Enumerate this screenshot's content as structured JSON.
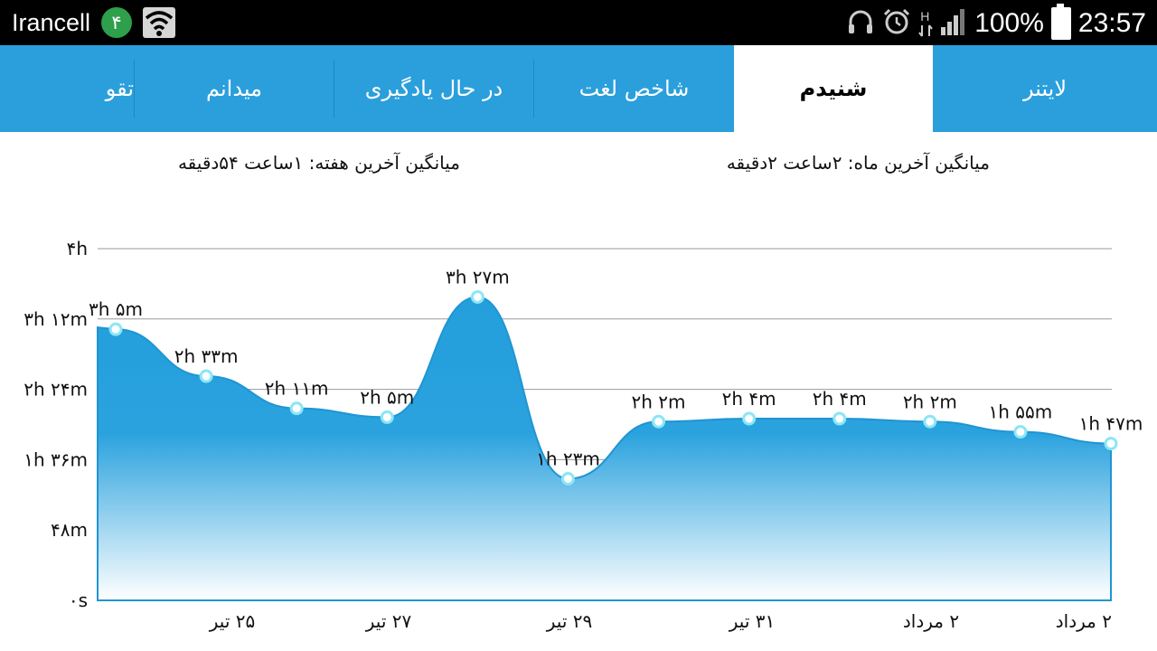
{
  "status_bar": {
    "carrier": "Irancell",
    "sim_number": "۴",
    "network_label": "H",
    "battery_percent": "100%",
    "time": "23:57"
  },
  "tabs": [
    {
      "label": "لایتنر",
      "active": false
    },
    {
      "label": "شنیدم",
      "active": true
    },
    {
      "label": "شاخص لغت",
      "active": false
    },
    {
      "label": "در حال یادگیری",
      "active": false
    },
    {
      "label": "میدانم",
      "active": false
    },
    {
      "label": "تقو",
      "active": false
    }
  ],
  "averages": {
    "month": "میانگین آخرین ماه: ۲ساعت  ۲دقیقه",
    "week": "میانگین آخرین هفته: ۱ساعت  ۵۴دقیقه"
  },
  "colors": {
    "accent": "#2a9fdc",
    "status_bar": "#000000",
    "area_top": "#239fdc",
    "area_bottom": "#ffffff",
    "point": "#8be6f5"
  },
  "chart_data": {
    "type": "area",
    "y_ticks": [
      {
        "value": 0,
        "label": "۰s"
      },
      {
        "value": 48,
        "label": "۴۸m"
      },
      {
        "value": 96,
        "label": "۱h ۳۶m"
      },
      {
        "value": 144,
        "label": "۲h ۲۴m"
      },
      {
        "value": 192,
        "label": "۳h ۱۲m"
      },
      {
        "value": 240,
        "label": "۴h"
      }
    ],
    "ylim": [
      0,
      240
    ],
    "x_ticks": [
      "۲۵ تیر",
      "۲۷ تیر",
      "۲۹ تیر",
      "۳۱ تیر",
      "۲ مرداد",
      "۲ مرداد"
    ],
    "points": [
      {
        "value": 185,
        "label": "۳h ۵m"
      },
      {
        "value": 153,
        "label": "۲h ۳۳m"
      },
      {
        "value": 131,
        "label": "۲h ۱۱m"
      },
      {
        "value": 125,
        "label": "۲h ۵m"
      },
      {
        "value": 207,
        "label": "۳h ۲۷m"
      },
      {
        "value": 83,
        "label": "۱h ۲۳m"
      },
      {
        "value": 122,
        "label": "۲h ۲m"
      },
      {
        "value": 124,
        "label": "۲h ۴m"
      },
      {
        "value": 124,
        "label": "۲h ۴m"
      },
      {
        "value": 122,
        "label": "۲h ۲m"
      },
      {
        "value": 115,
        "label": "۱h ۵۵m"
      },
      {
        "value": 107,
        "label": "۱h ۴۷m"
      }
    ]
  }
}
